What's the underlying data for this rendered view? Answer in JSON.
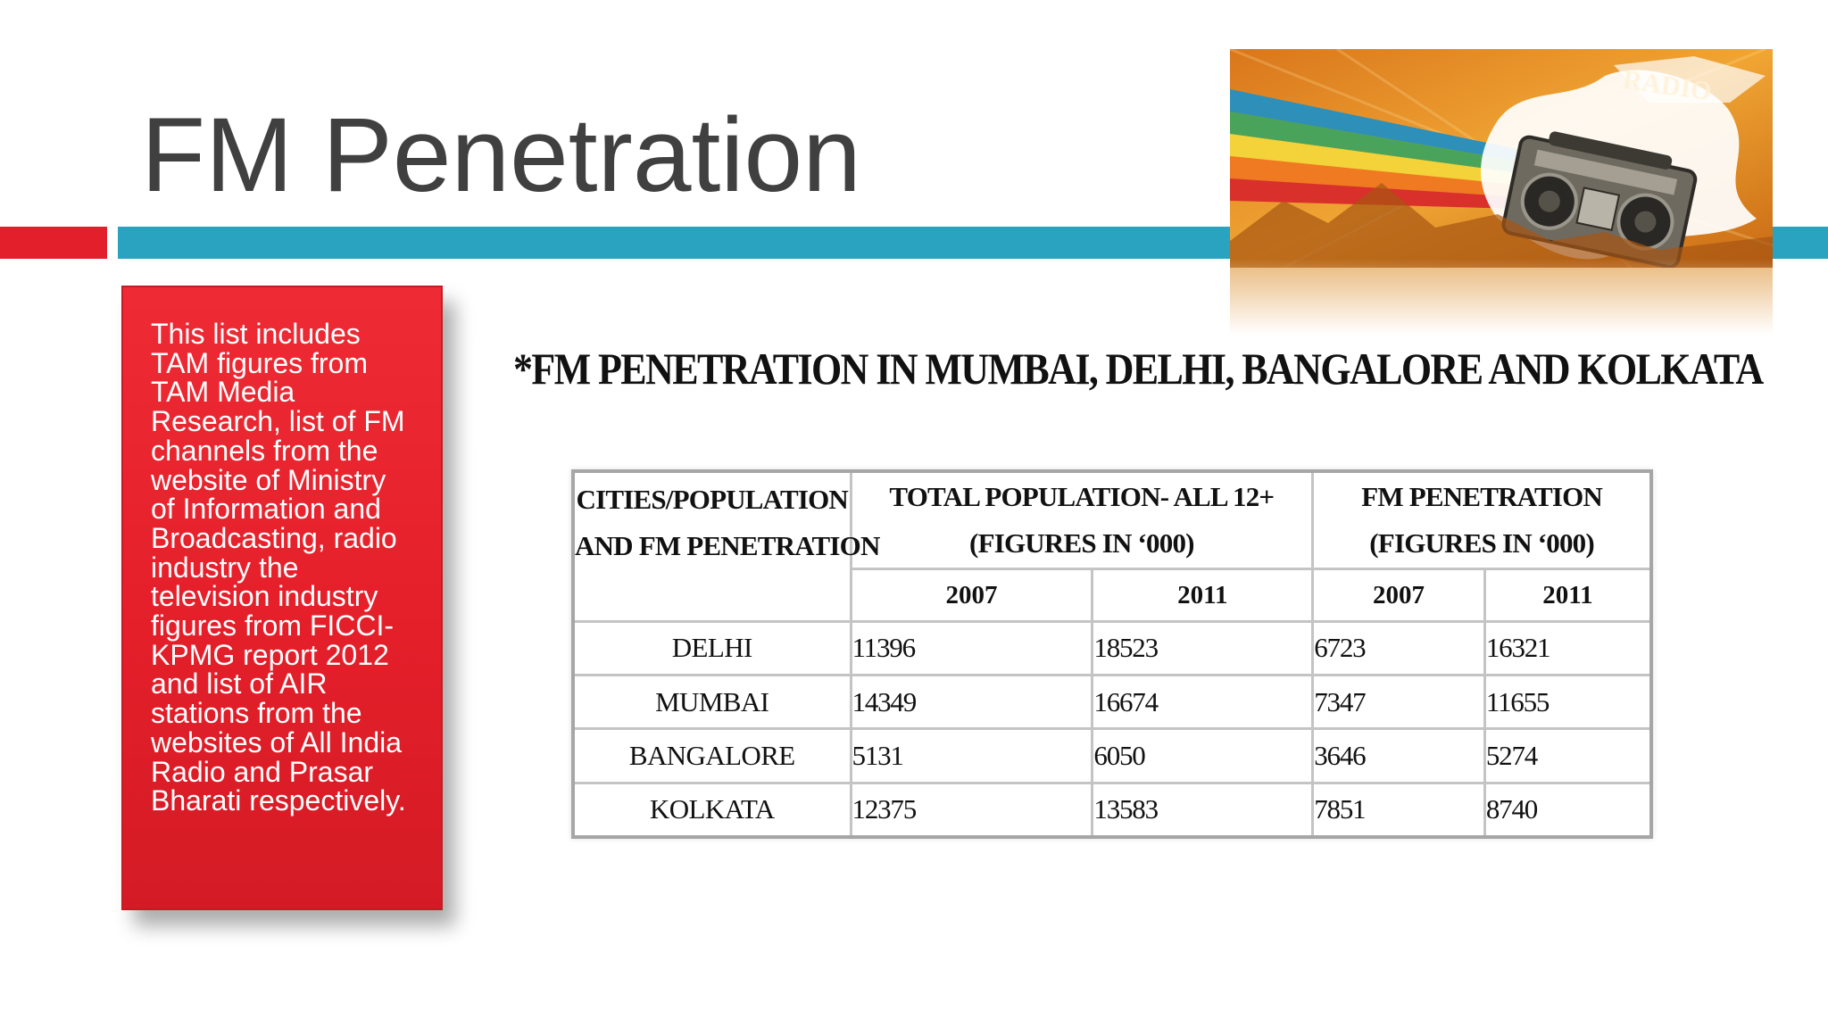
{
  "slide": {
    "title": "FM Penetration",
    "subtitle": "*FM PENETRATION IN MUMBAI, DELHI, BANGALORE AND KOLKATA"
  },
  "info_box": {
    "text": "This list includes TAM figures from TAM Media Research, list of FM channels from the website of Ministry of Information and Broadcasting, radio industry the television industry figures from FICCI-KPMG report 2012 and list of AIR stations from the websites of All India Radio and Prasar Bharati respectively."
  },
  "banner": {
    "image_icon": "boombox-radio-rainbow-banner-image",
    "lettering": "RADIO"
  },
  "colors": {
    "accent_red": "#e21f2b",
    "accent_blue": "#2aa3c1",
    "title_text": "#404040"
  },
  "table": {
    "header": {
      "col1_line1": "CITIES/POPULATION",
      "col1_line2": "AND FM PENETRATION",
      "col2_line1": "TOTAL POPULATION- ALL 12+",
      "col2_line2": "(FIGURES IN ‘000)",
      "col3_line1": "FM PENETRATION",
      "col3_line2": "(FIGURES IN ‘000)"
    },
    "years": [
      "2007",
      "2011",
      "2007",
      "2011"
    ],
    "rows": [
      {
        "city": "DELHI",
        "pop_2007": "11396",
        "pop_2011": "18523",
        "fm_2007": "6723",
        "fm_2011": "16321"
      },
      {
        "city": "MUMBAI",
        "pop_2007": "14349",
        "pop_2011": "16674",
        "fm_2007": "7347",
        "fm_2011": "11655"
      },
      {
        "city": "BANGALORE",
        "pop_2007": "5131",
        "pop_2011": "6050",
        "fm_2007": "3646",
        "fm_2011": "5274"
      },
      {
        "city": "KOLKATA",
        "pop_2007": "12375",
        "pop_2011": "13583",
        "fm_2007": "7851",
        "fm_2011": "8740"
      }
    ]
  }
}
